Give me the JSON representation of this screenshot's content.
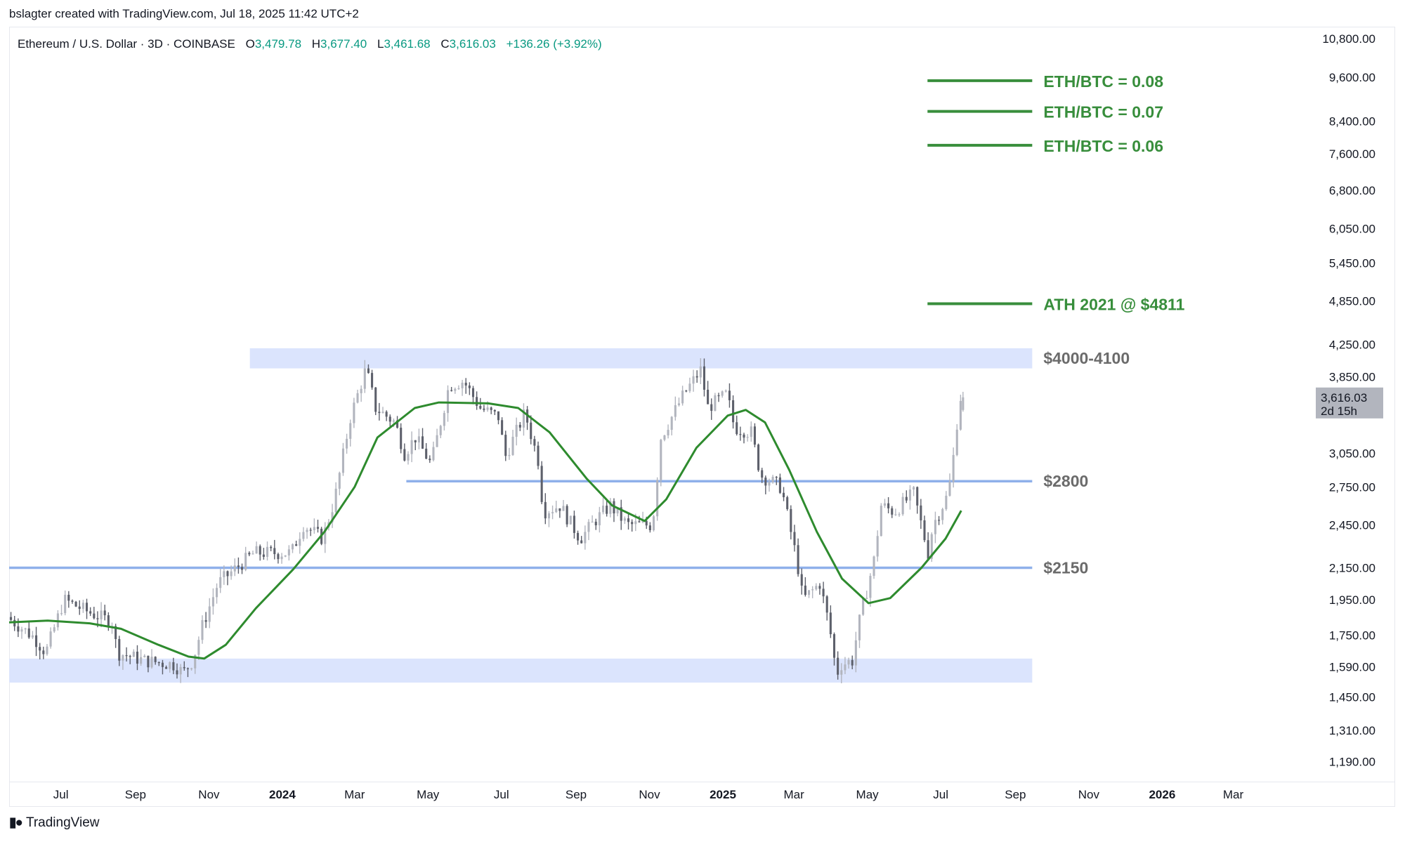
{
  "header": {
    "credit": "bslagter created with TradingView.com, Jul 18, 2025 11:42 UTC+2",
    "symbol": "Ethereum / U.S. Dollar · 3D · COINBASE",
    "open_label": "O",
    "open": "3,479.78",
    "high_label": "H",
    "high": "3,677.40",
    "low_label": "L",
    "low": "3,461.68",
    "close_label": "C",
    "close": "3,616.03",
    "change": "+136.26 (+3.92%)"
  },
  "footer": {
    "brand": "TradingView"
  },
  "colors": {
    "bull": "#b2b5be",
    "bear": "#5d606b",
    "ma": "#2e8b2e",
    "zone": "#dbe4fd",
    "support_line": "#8fb0ea",
    "target": "#388e3c",
    "level_text": "#6b6b6b",
    "change": "#089981"
  },
  "chart_data": {
    "type": "candlestick",
    "y_scale": "log",
    "y_ticks": [
      "10,800.00",
      "9,600.00",
      "8,400.00",
      "7,600.00",
      "6,800.00",
      "6,050.00",
      "5,450.00",
      "4,850.00",
      "4,250.00",
      "3,850.00",
      "3,050.00",
      "2,750.00",
      "2,450.00",
      "2,150.00",
      "1,950.00",
      "1,750.00",
      "1,590.00",
      "1,450.00",
      "1,310.00",
      "1,190.00"
    ],
    "y_tick_values": [
      10800,
      9600,
      8400,
      7600,
      6800,
      6050,
      5450,
      4850,
      4250,
      3850,
      3050,
      2750,
      2450,
      2150,
      1950,
      1750,
      1590,
      1450,
      1310,
      1190
    ],
    "ylim": [
      1120,
      11200
    ],
    "x_ticks": [
      "Jul",
      "Sep",
      "Nov",
      "2024",
      "Mar",
      "May",
      "Jul",
      "Sep",
      "Nov",
      "2025",
      "Mar",
      "May",
      "Jul",
      "Sep",
      "Nov",
      "2026",
      "Mar"
    ],
    "x_tick_dates": [
      "2023-07-01",
      "2023-09-01",
      "2023-11-01",
      "2024-01-01",
      "2024-03-01",
      "2024-05-01",
      "2024-07-01",
      "2024-09-01",
      "2024-11-01",
      "2025-01-01",
      "2025-03-01",
      "2025-05-01",
      "2025-07-01",
      "2025-09-01",
      "2025-11-01",
      "2026-01-01",
      "2026-03-01"
    ],
    "x_bold": [
      "2024",
      "2025",
      "2026"
    ],
    "xlim": [
      "2023-05-19",
      "2026-04-24"
    ],
    "price_path": [
      [
        "2023-05-19",
        1850
      ],
      [
        "2023-06-10",
        1740
      ],
      [
        "2023-06-20",
        1660
      ],
      [
        "2023-07-05",
        1950
      ],
      [
        "2023-07-25",
        1880
      ],
      [
        "2023-08-15",
        1820
      ],
      [
        "2023-08-18",
        1660
      ],
      [
        "2023-09-10",
        1620
      ],
      [
        "2023-10-05",
        1600
      ],
      [
        "2023-10-12",
        1560
      ],
      [
        "2023-10-20",
        1620
      ],
      [
        "2023-10-28",
        1800
      ],
      [
        "2023-11-10",
        2050
      ],
      [
        "2023-12-10",
        2250
      ],
      [
        "2024-01-10",
        2250
      ],
      [
        "2024-01-20",
        2450
      ],
      [
        "2024-02-05",
        2350
      ],
      [
        "2024-02-15",
        2650
      ],
      [
        "2024-02-28",
        3400
      ],
      [
        "2024-03-12",
        3950
      ],
      [
        "2024-03-20",
        3500
      ],
      [
        "2024-04-05",
        3350
      ],
      [
        "2024-04-13",
        3050
      ],
      [
        "2024-04-22",
        3200
      ],
      [
        "2024-05-05",
        2950
      ],
      [
        "2024-05-20",
        3750
      ],
      [
        "2024-06-01",
        3800
      ],
      [
        "2024-06-15",
        3500
      ],
      [
        "2024-07-01",
        3400
      ],
      [
        "2024-07-05",
        3000
      ],
      [
        "2024-07-22",
        3450
      ],
      [
        "2024-08-03",
        2950
      ],
      [
        "2024-08-06",
        2550
      ],
      [
        "2024-08-20",
        2600
      ],
      [
        "2024-09-06",
        2350
      ],
      [
        "2024-09-20",
        2500
      ],
      [
        "2024-10-01",
        2600
      ],
      [
        "2024-10-15",
        2450
      ],
      [
        "2024-11-05",
        2450
      ],
      [
        "2024-11-12",
        3200
      ],
      [
        "2024-12-01",
        3650
      ],
      [
        "2024-12-16",
        3950
      ],
      [
        "2024-12-20",
        3500
      ],
      [
        "2025-01-06",
        3650
      ],
      [
        "2025-01-12",
        3300
      ],
      [
        "2025-01-26",
        3250
      ],
      [
        "2025-02-03",
        2850
      ],
      [
        "2025-02-20",
        2750
      ],
      [
        "2025-03-05",
        2200
      ],
      [
        "2025-03-10",
        1950
      ],
      [
        "2025-03-24",
        2050
      ],
      [
        "2025-04-01",
        1800
      ],
      [
        "2025-04-07",
        1550
      ],
      [
        "2025-04-10",
        1600
      ],
      [
        "2025-04-20",
        1620
      ],
      [
        "2025-04-25",
        1800
      ],
      [
        "2025-05-08",
        2200
      ],
      [
        "2025-05-14",
        2600
      ],
      [
        "2025-05-25",
        2550
      ],
      [
        "2025-06-10",
        2700
      ],
      [
        "2025-06-22",
        2250
      ],
      [
        "2025-06-26",
        2450
      ],
      [
        "2025-07-09",
        2700
      ],
      [
        "2025-07-14",
        3100
      ],
      [
        "2025-07-18",
        3616
      ]
    ],
    "last_candle": {
      "date": "2025-07-18",
      "open": 3479.78,
      "high": 3677.4,
      "low": 3461.68,
      "close": 3616.03
    },
    "moving_average": [
      [
        "2023-05-19",
        1820
      ],
      [
        "2023-06-20",
        1830
      ],
      [
        "2023-07-25",
        1815
      ],
      [
        "2023-08-20",
        1785
      ],
      [
        "2023-09-20",
        1700
      ],
      [
        "2023-10-15",
        1640
      ],
      [
        "2023-10-28",
        1630
      ],
      [
        "2023-11-15",
        1700
      ],
      [
        "2023-12-10",
        1900
      ],
      [
        "2024-01-10",
        2140
      ],
      [
        "2024-02-05",
        2400
      ],
      [
        "2024-03-01",
        2750
      ],
      [
        "2024-03-20",
        3200
      ],
      [
        "2024-04-20",
        3500
      ],
      [
        "2024-05-10",
        3560
      ],
      [
        "2024-06-20",
        3550
      ],
      [
        "2024-07-15",
        3500
      ],
      [
        "2024-08-10",
        3250
      ],
      [
        "2024-09-10",
        2820
      ],
      [
        "2024-10-01",
        2600
      ],
      [
        "2024-10-28",
        2480
      ],
      [
        "2024-11-15",
        2650
      ],
      [
        "2024-12-10",
        3100
      ],
      [
        "2025-01-05",
        3420
      ],
      [
        "2025-01-20",
        3480
      ],
      [
        "2025-02-05",
        3350
      ],
      [
        "2025-02-25",
        2900
      ],
      [
        "2025-03-20",
        2400
      ],
      [
        "2025-04-10",
        2080
      ],
      [
        "2025-05-02",
        1930
      ],
      [
        "2025-05-20",
        1960
      ],
      [
        "2025-06-15",
        2150
      ],
      [
        "2025-07-05",
        2350
      ],
      [
        "2025-07-18",
        2560
      ]
    ],
    "zones": [
      {
        "label": "$4000-4100",
        "low": 3950,
        "high": 4200,
        "start": "2023-12-05",
        "end": "2025-09-15"
      },
      {
        "label": "",
        "low": 1515,
        "high": 1630,
        "start": "2023-05-19",
        "end": "2025-09-15"
      }
    ],
    "support_lines": [
      {
        "label": "$2800",
        "value": 2800,
        "start": "2024-04-13",
        "end": "2025-09-15"
      },
      {
        "label": "$2150",
        "value": 2150,
        "start": "2023-05-19",
        "end": "2025-09-15"
      }
    ],
    "target_lines": [
      {
        "label": "ETH/BTC = 0.08",
        "value": 9500
      },
      {
        "label": "ETH/BTC = 0.07",
        "value": 8650
      },
      {
        "label": "ETH/BTC = 0.06",
        "value": 7800
      },
      {
        "label": "ATH 2021 @ $4811",
        "value": 4811
      }
    ],
    "price_tag": {
      "value": "3,616.03",
      "countdown": "2d 15h"
    }
  }
}
